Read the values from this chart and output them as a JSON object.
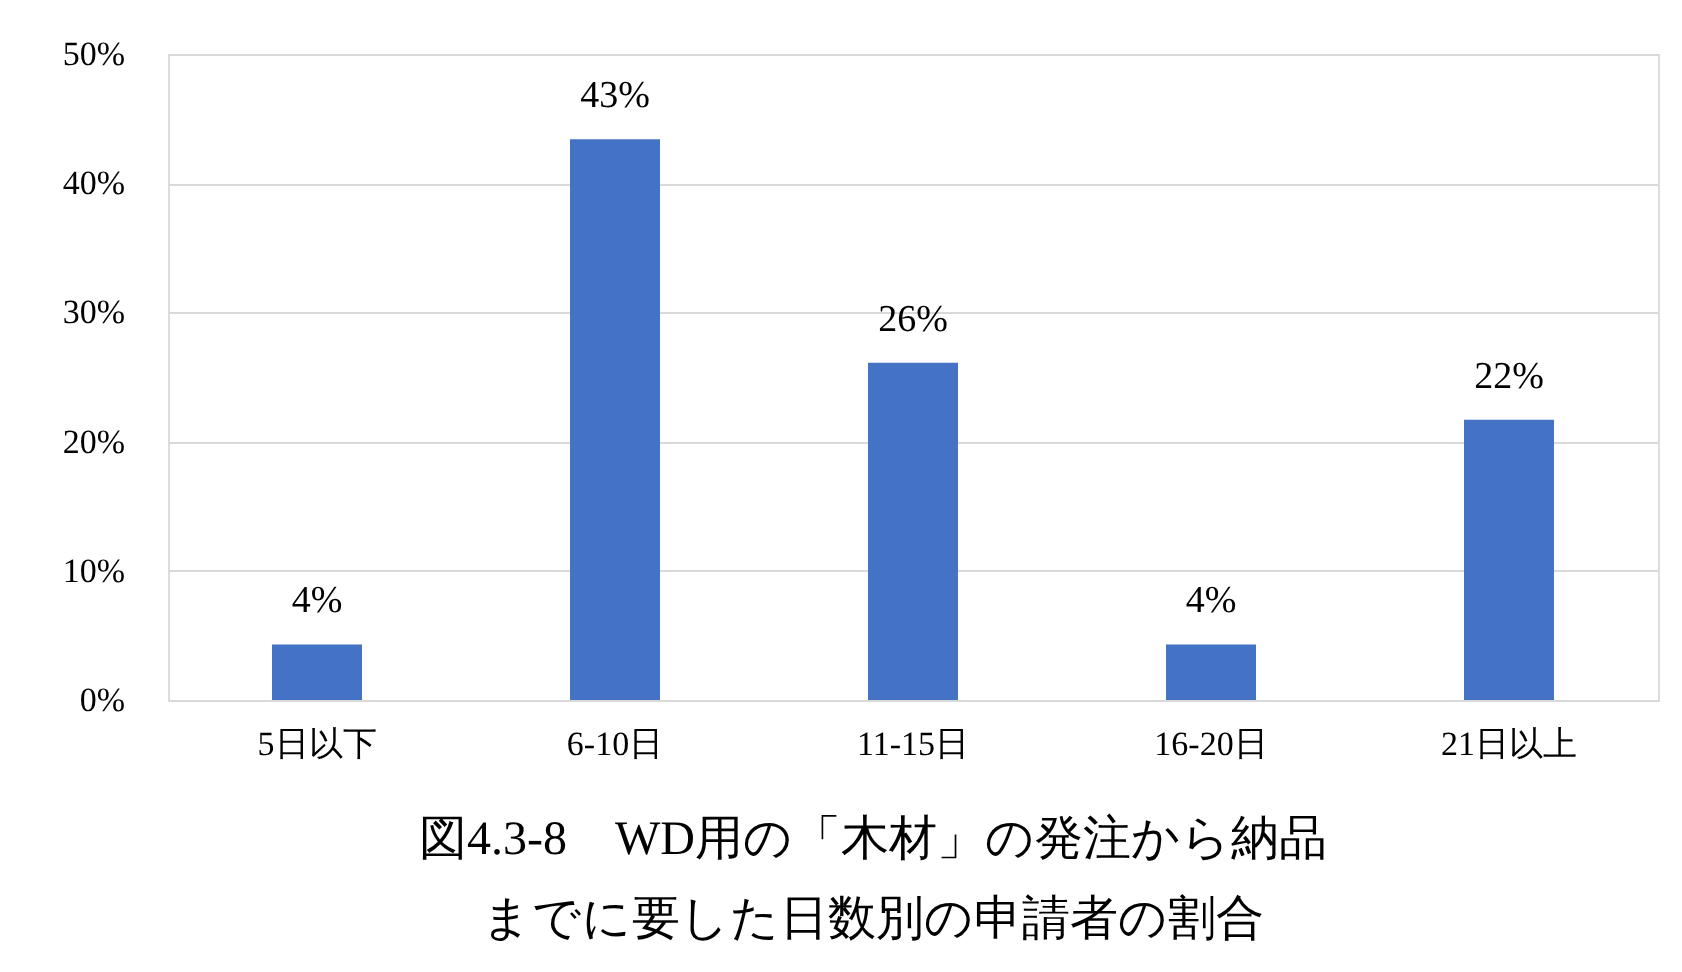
{
  "chart_data": {
    "type": "bar",
    "title": [
      "図4.3-8　WD用の「木材」の発注から納品",
      "までに要した日数別の申請者の割合"
    ],
    "categories": [
      "5日以下",
      "6-10日",
      "11-15日",
      "16-20日",
      "21日以上"
    ],
    "values": [
      4.3,
      43.4,
      26.1,
      4.3,
      21.7
    ],
    "value_labels": [
      "4%",
      "43%",
      "26%",
      "4%",
      "22%"
    ],
    "color": "#4472c4",
    "ylim": [
      0,
      50
    ],
    "yticks": [
      {
        "value": 0,
        "label": "0%"
      },
      {
        "value": 10,
        "label": "10%"
      },
      {
        "value": 20,
        "label": "20%"
      },
      {
        "value": 30,
        "label": "30%"
      },
      {
        "value": 40,
        "label": "40%"
      },
      {
        "value": 50,
        "label": "50%"
      }
    ],
    "grid": "y"
  }
}
